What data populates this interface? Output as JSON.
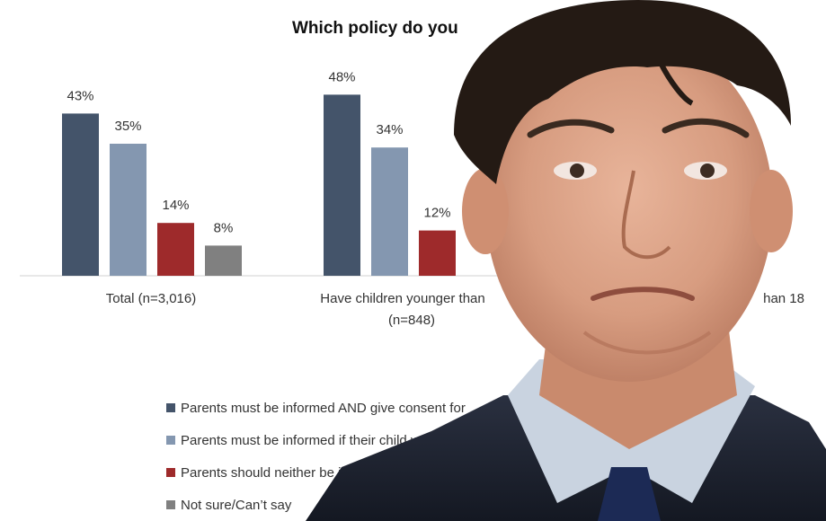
{
  "chart_data": {
    "type": "bar",
    "title": "Which policy do you",
    "categories": [
      "Total (n=3,016)",
      "Have children younger than",
      "(n=848)",
      "han 18"
    ],
    "groups": [
      {
        "label": "Total (n=3,016)",
        "values": [
          43,
          35,
          14,
          8
        ],
        "labels": [
          "43%",
          "35%",
          "14%",
          "8%"
        ]
      },
      {
        "label": "Have children younger than\n(n=848)",
        "values": [
          48,
          34,
          12,
          null
        ],
        "labels": [
          "48%",
          "34%",
          "12%",
          ""
        ]
      }
    ],
    "series": [
      {
        "name": "Parents must be informed AND give consent for",
        "color": "#44546A"
      },
      {
        "name": "Parents must be informed if their child wants",
        "color": "#8497B0"
      },
      {
        "name": "Parents should neither be informed",
        "color": "#9E2A2B"
      },
      {
        "name": "Not sure/Can’t say",
        "color": "#808080"
      }
    ],
    "ylim": [
      0,
      50
    ],
    "grid": false,
    "legend_position": "bottom"
  },
  "overlay": {
    "subject": "man-portrait-photo"
  }
}
